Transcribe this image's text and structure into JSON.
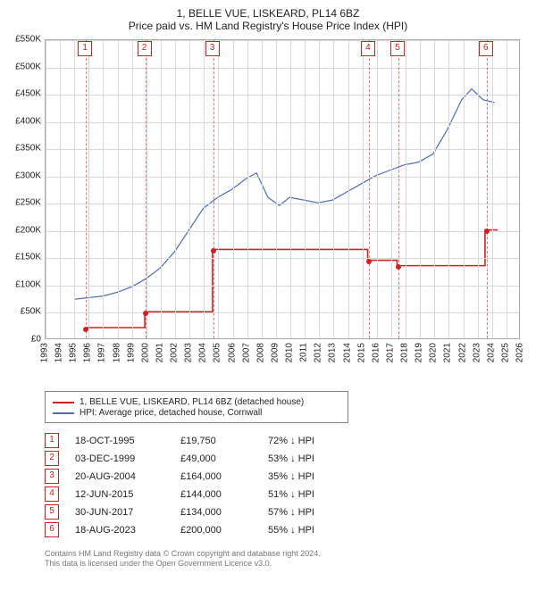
{
  "title_line1": "1, BELLE VUE, LISKEARD, PL14 6BZ",
  "title_line2": "Price paid vs. HM Land Registry's House Price Index (HPI)",
  "x": {
    "min_year": 1993,
    "max_year": 2026,
    "tick_step": 1,
    "label_fontsize": 10
  },
  "y": {
    "min": 0,
    "max": 550000,
    "tick_step": 50000,
    "tick_prefix": "£",
    "tick_suffix": "K",
    "label_fontsize": 10
  },
  "grid_color": "#d8d8d8",
  "plot_border_color": "#aaaaaa",
  "background_color": "#ffffff",
  "series": {
    "price_paid": {
      "label": "1, BELLE VUE, LISKEARD, PL14 6BZ (detached house)",
      "color": "#d02020",
      "line_width": 1.6,
      "shape": "step",
      "step_points": [
        {
          "year": 1995.8,
          "value": 19750
        },
        {
          "year": 1999.92,
          "value": 49000
        },
        {
          "year": 2004.64,
          "value": 164000
        },
        {
          "year": 2015.45,
          "value": 144000
        },
        {
          "year": 2017.5,
          "value": 134000
        },
        {
          "year": 2023.63,
          "value": 200000
        }
      ],
      "extend_to_year": 2024.5
    },
    "hpi": {
      "label": "HPI: Average price, detached house, Cornwall",
      "color": "#4d6db3",
      "line_width": 1.2,
      "shape": "line",
      "points": [
        {
          "year": 1995.0,
          "value": 72000
        },
        {
          "year": 1996.0,
          "value": 75000
        },
        {
          "year": 1997.0,
          "value": 78000
        },
        {
          "year": 1998.0,
          "value": 85000
        },
        {
          "year": 1999.0,
          "value": 95000
        },
        {
          "year": 2000.0,
          "value": 110000
        },
        {
          "year": 2001.0,
          "value": 130000
        },
        {
          "year": 2002.0,
          "value": 160000
        },
        {
          "year": 2003.0,
          "value": 200000
        },
        {
          "year": 2004.0,
          "value": 240000
        },
        {
          "year": 2005.0,
          "value": 260000
        },
        {
          "year": 2006.0,
          "value": 275000
        },
        {
          "year": 2007.0,
          "value": 295000
        },
        {
          "year": 2007.7,
          "value": 305000
        },
        {
          "year": 2008.5,
          "value": 260000
        },
        {
          "year": 2009.3,
          "value": 245000
        },
        {
          "year": 2010.0,
          "value": 260000
        },
        {
          "year": 2011.0,
          "value": 255000
        },
        {
          "year": 2012.0,
          "value": 250000
        },
        {
          "year": 2013.0,
          "value": 255000
        },
        {
          "year": 2014.0,
          "value": 270000
        },
        {
          "year": 2015.0,
          "value": 285000
        },
        {
          "year": 2016.0,
          "value": 300000
        },
        {
          "year": 2017.0,
          "value": 310000
        },
        {
          "year": 2018.0,
          "value": 320000
        },
        {
          "year": 2019.0,
          "value": 325000
        },
        {
          "year": 2020.0,
          "value": 340000
        },
        {
          "year": 2021.0,
          "value": 385000
        },
        {
          "year": 2022.0,
          "value": 440000
        },
        {
          "year": 2022.7,
          "value": 460000
        },
        {
          "year": 2023.5,
          "value": 440000
        },
        {
          "year": 2024.3,
          "value": 435000
        }
      ]
    }
  },
  "events": [
    {
      "n": 1,
      "year": 1995.8,
      "date": "18-OCT-1995",
      "price": "£19,750",
      "hpi": "72% ↓ HPI"
    },
    {
      "n": 2,
      "year": 1999.92,
      "date": "03-DEC-1999",
      "price": "£49,000",
      "hpi": "53% ↓ HPI"
    },
    {
      "n": 3,
      "year": 2004.64,
      "date": "20-AUG-2004",
      "price": "£164,000",
      "hpi": "35% ↓ HPI"
    },
    {
      "n": 4,
      "year": 2015.45,
      "date": "12-JUN-2015",
      "price": "£144,000",
      "hpi": "51% ↓ HPI"
    },
    {
      "n": 5,
      "year": 2017.5,
      "date": "30-JUN-2017",
      "price": "£134,000",
      "hpi": "57% ↓ HPI"
    },
    {
      "n": 6,
      "year": 2023.63,
      "date": "18-AUG-2023",
      "price": "£200,000",
      "hpi": "55% ↓ HPI"
    }
  ],
  "event_flag": {
    "border_color": "#d02020",
    "text_color": "#d02020",
    "bg": "#ffffff"
  },
  "event_line_color": "#e04040",
  "legend": {
    "border_color": "#888888",
    "fontsize": 10
  },
  "footnote_lines": [
    "Contains HM Land Registry data © Crown copyright and database right 2024.",
    "This data is licensed under the Open Government Licence v3.0."
  ],
  "footnote_color": "#777777"
}
